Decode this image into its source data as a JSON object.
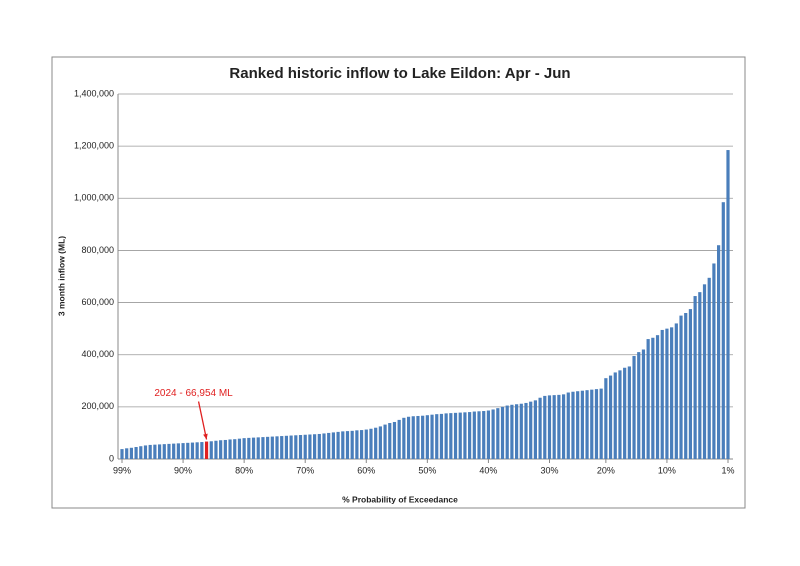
{
  "chart_data": {
    "type": "bar",
    "title": "Ranked historic inflow to Lake Eildon: Apr - Jun",
    "xlabel": "% Probability of Exceedance",
    "ylabel": "3 month inflow (ML)",
    "color": "#4a7ebb",
    "highlight_color": "#e02020",
    "grid": true,
    "ylim": [
      0,
      1400000
    ],
    "yticks": [
      0,
      {
        "value": 200000,
        "label": "200,000"
      },
      {
        "value": 400000,
        "label": "400,000"
      },
      {
        "value": 600000,
        "label": "600,000"
      },
      {
        "value": 800000,
        "label": "800,000"
      },
      {
        "value": 1000000,
        "label": "1,000,000"
      },
      {
        "value": 1200000,
        "label": "1,200,000"
      },
      {
        "value": 1400000,
        "label": "1,400,000"
      }
    ],
    "categories": [
      "99%",
      null,
      null,
      null,
      null,
      null,
      null,
      null,
      null,
      null,
      null,
      null,
      null,
      "90%",
      null,
      null,
      null,
      null,
      null,
      null,
      null,
      null,
      null,
      null,
      null,
      null,
      "80%",
      null,
      null,
      null,
      null,
      null,
      null,
      null,
      null,
      null,
      null,
      null,
      null,
      "70%",
      null,
      null,
      null,
      null,
      null,
      null,
      null,
      null,
      null,
      null,
      null,
      null,
      "60%",
      null,
      null,
      null,
      null,
      null,
      null,
      null,
      null,
      null,
      null,
      null,
      null,
      "50%",
      null,
      null,
      null,
      null,
      null,
      null,
      null,
      null,
      null,
      null,
      null,
      null,
      "40%",
      null,
      null,
      null,
      null,
      null,
      null,
      null,
      null,
      null,
      null,
      null,
      null,
      "30%",
      null,
      null,
      null,
      null,
      null,
      null,
      null,
      null,
      null,
      null,
      null,
      "20%",
      null,
      null,
      null,
      null,
      null,
      null,
      null,
      null,
      null,
      null,
      null,
      null,
      "10%",
      null,
      null,
      null,
      null,
      null,
      null,
      null,
      null,
      null,
      null,
      null,
      null,
      "1%"
    ],
    "values": [
      38000,
      41000,
      43000,
      46000,
      49000,
      52000,
      54000,
      55000,
      56000,
      57000,
      58000,
      59000,
      60000,
      61000,
      62000,
      63000,
      64000,
      65000,
      66954,
      68000,
      70000,
      72000,
      73000,
      75000,
      76000,
      78000,
      80000,
      81000,
      82000,
      83000,
      84000,
      85000,
      86000,
      87000,
      88000,
      89000,
      90000,
      91000,
      92000,
      93000,
      94000,
      95000,
      96000,
      98000,
      100000,
      102000,
      104000,
      106000,
      107000,
      108000,
      110000,
      111000,
      113000,
      116000,
      120000,
      125000,
      132000,
      138000,
      142000,
      150000,
      158000,
      162000,
      164000,
      165000,
      166000,
      168000,
      170000,
      172000,
      173000,
      175000,
      176000,
      177000,
      178000,
      179000,
      180000,
      182000,
      183000,
      184000,
      186000,
      190000,
      195000,
      200000,
      205000,
      208000,
      210000,
      212000,
      215000,
      220000,
      225000,
      235000,
      242000,
      244000,
      245000,
      246000,
      248000,
      255000,
      258000,
      260000,
      262000,
      264000,
      266000,
      268000,
      270000,
      310000,
      320000,
      332000,
      340000,
      350000,
      355000,
      395000,
      410000,
      420000,
      460000,
      465000,
      475000,
      495000,
      500000,
      505000,
      520000,
      550000,
      560000,
      575000,
      625000,
      640000,
      670000,
      695000,
      750000,
      820000,
      985000,
      1185000
    ],
    "value_labels": [
      null,
      null,
      null,
      null,
      null,
      null,
      null,
      null,
      null,
      null,
      null,
      null,
      null,
      null,
      null,
      null,
      null,
      null,
      "2024 - 66,954 ML",
      null,
      null,
      null,
      null,
      null,
      null,
      null,
      null,
      null,
      null,
      null,
      null,
      null,
      null,
      null,
      null,
      null,
      null,
      null,
      null,
      null,
      null,
      null,
      null,
      null,
      null,
      null,
      null,
      null,
      null,
      null,
      null,
      null,
      null,
      null,
      null,
      null,
      null,
      null,
      null,
      null,
      null,
      null,
      null,
      null,
      null,
      null,
      null,
      null,
      null,
      null,
      null,
      null,
      null,
      null,
      null,
      null,
      null,
      null,
      null,
      null,
      null,
      null,
      null,
      null,
      null,
      null,
      null,
      null,
      null,
      null,
      null,
      null,
      null,
      null,
      null,
      null,
      null,
      null,
      null,
      null,
      null,
      null,
      null,
      null,
      null,
      null,
      null,
      null,
      null,
      null,
      null,
      null,
      null,
      null,
      null,
      null,
      null,
      null,
      null,
      null,
      null,
      null,
      null,
      null,
      null,
      null,
      null,
      null,
      null,
      null
    ]
  }
}
